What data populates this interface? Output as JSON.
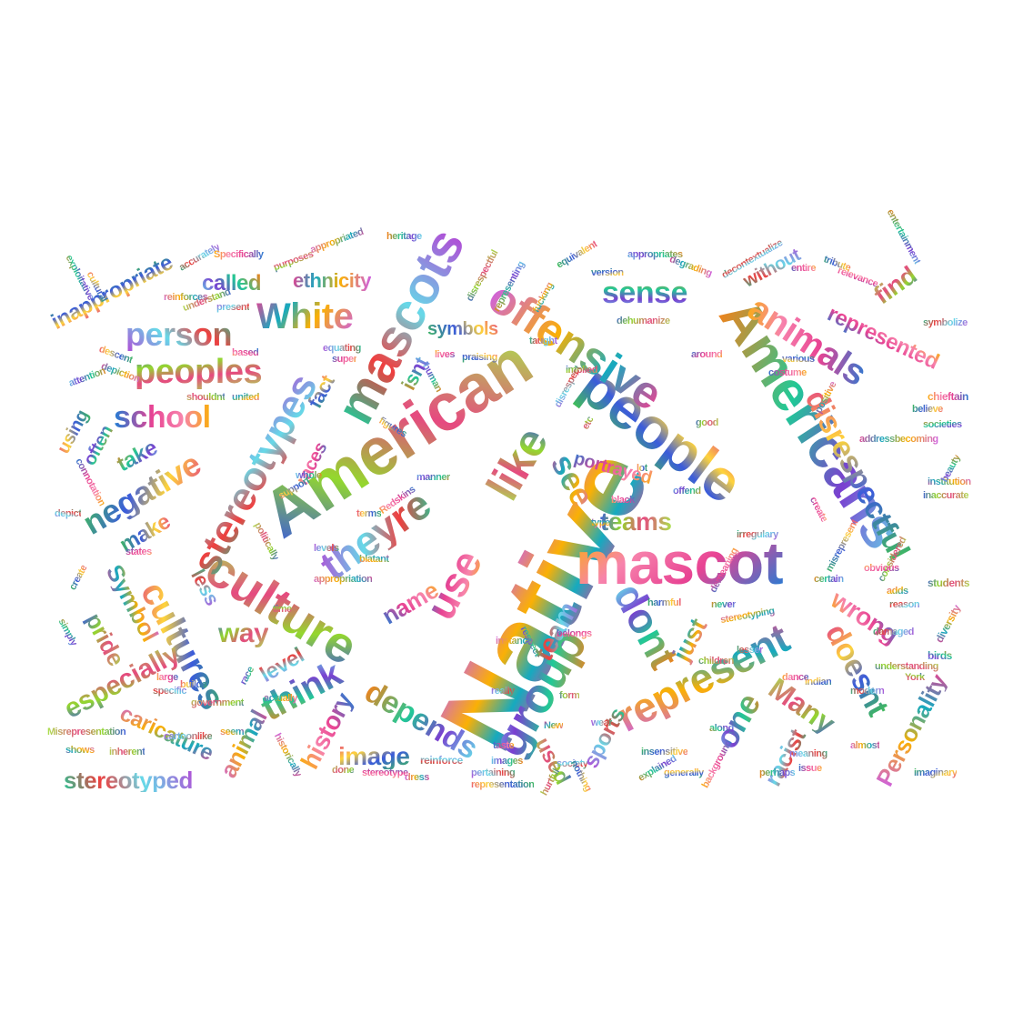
{
  "palette": [
    "#e84393",
    "#b24bd6",
    "#7a3fd0",
    "#3b5bdb",
    "#1c7ed6",
    "#15aabf",
    "#20c997",
    "#40c057",
    "#94d82d",
    "#fab005",
    "#fd7e14",
    "#f03e3e",
    "#e64980",
    "#cc5de8",
    "#f783ac",
    "#66d9e8",
    "#a9e34b",
    "#ffd43b"
  ],
  "words": [
    {
      "text": "Native"
    },
    {
      "text": "American"
    },
    {
      "text": "mascots"
    },
    {
      "text": "mascot"
    },
    {
      "text": "people"
    },
    {
      "text": "Americans"
    },
    {
      "text": "offensive"
    },
    {
      "text": "culture"
    },
    {
      "text": "stereotypes"
    },
    {
      "text": "animals"
    },
    {
      "text": "disrespectful"
    },
    {
      "text": "group"
    },
    {
      "text": "represent"
    },
    {
      "text": "like"
    },
    {
      "text": "theyre"
    },
    {
      "text": "use"
    },
    {
      "text": "cultures"
    },
    {
      "text": "dont"
    },
    {
      "text": "White"
    },
    {
      "text": "peoples"
    },
    {
      "text": "person"
    },
    {
      "text": "school"
    },
    {
      "text": "negative"
    },
    {
      "text": "sense"
    },
    {
      "text": "see"
    },
    {
      "text": "teams"
    },
    {
      "text": "team"
    },
    {
      "text": "represented"
    },
    {
      "text": "symbols"
    },
    {
      "text": "depends"
    },
    {
      "text": "caricature"
    },
    {
      "text": "especially"
    },
    {
      "text": "stereotyped"
    },
    {
      "text": "history"
    },
    {
      "text": "image"
    },
    {
      "text": "think"
    },
    {
      "text": "Personality"
    },
    {
      "text": "Many"
    },
    {
      "text": "racist"
    },
    {
      "text": "wrong"
    },
    {
      "text": "doesnt"
    },
    {
      "text": "one"
    },
    {
      "text": "just"
    },
    {
      "text": "used"
    },
    {
      "text": "sports"
    },
    {
      "text": "portrayed"
    },
    {
      "text": "inappropriate"
    },
    {
      "text": "called"
    },
    {
      "text": "ethnicity"
    },
    {
      "text": "way"
    },
    {
      "text": "level"
    },
    {
      "text": "name"
    },
    {
      "text": "make"
    },
    {
      "text": "take"
    },
    {
      "text": "Symbol"
    },
    {
      "text": "pride"
    },
    {
      "text": "less"
    },
    {
      "text": "races"
    },
    {
      "text": "fact"
    },
    {
      "text": "isnt"
    },
    {
      "text": "animal"
    },
    {
      "text": "find"
    },
    {
      "text": "without"
    },
    {
      "text": "chieftain"
    },
    {
      "text": "using"
    },
    {
      "text": "often"
    },
    {
      "text": "appropriation"
    },
    {
      "text": "Misrepresentation"
    },
    {
      "text": "cartoonlike"
    },
    {
      "text": "stereotype"
    },
    {
      "text": "representation"
    },
    {
      "text": "images"
    },
    {
      "text": "New"
    },
    {
      "text": "York"
    },
    {
      "text": "meaning"
    },
    {
      "text": "issue"
    },
    {
      "text": "imaginary"
    },
    {
      "text": "birds"
    },
    {
      "text": "diversity"
    },
    {
      "text": "students"
    },
    {
      "text": "reason"
    },
    {
      "text": "demeaning"
    },
    {
      "text": "harmful"
    },
    {
      "text": "never"
    },
    {
      "text": "stereotyping"
    },
    {
      "text": "children"
    },
    {
      "text": "lesser"
    },
    {
      "text": "background"
    },
    {
      "text": "generally"
    },
    {
      "text": "explained"
    },
    {
      "text": "dress"
    },
    {
      "text": "done"
    },
    {
      "text": "reinforce"
    },
    {
      "text": "Redskins"
    },
    {
      "text": "terms"
    },
    {
      "text": "manner"
    },
    {
      "text": "blatant"
    },
    {
      "text": "politically"
    },
    {
      "text": "levels"
    },
    {
      "text": "states"
    },
    {
      "text": "figures"
    },
    {
      "text": "human"
    },
    {
      "text": "depiction"
    },
    {
      "text": "implied"
    },
    {
      "text": "disrespect"
    },
    {
      "text": "costume"
    },
    {
      "text": "believe"
    },
    {
      "text": "societies"
    },
    {
      "text": "institution"
    },
    {
      "text": "inaccurate"
    },
    {
      "text": "symbolize"
    },
    {
      "text": "relevance"
    },
    {
      "text": "tribute"
    },
    {
      "text": "heritage"
    },
    {
      "text": "appropriated"
    },
    {
      "text": "purposes"
    },
    {
      "text": "accurately"
    },
    {
      "text": "Specifically"
    },
    {
      "text": "cultural"
    },
    {
      "text": "exploitative"
    },
    {
      "text": "reinforces"
    },
    {
      "text": "understand"
    },
    {
      "text": "present"
    },
    {
      "text": "based"
    },
    {
      "text": "descent"
    },
    {
      "text": "attention"
    },
    {
      "text": "united"
    },
    {
      "text": "shouldnt"
    },
    {
      "text": "equating"
    },
    {
      "text": "super"
    },
    {
      "text": "version"
    },
    {
      "text": "appropriates"
    },
    {
      "text": "degrading"
    },
    {
      "text": "dehumanize"
    },
    {
      "text": "decontextualize"
    },
    {
      "text": "entire"
    },
    {
      "text": "equivalent"
    },
    {
      "text": "entertainment"
    },
    {
      "text": "fucking"
    },
    {
      "text": "disrespectful"
    },
    {
      "text": "taught"
    },
    {
      "text": "lives"
    },
    {
      "text": "praising"
    },
    {
      "text": "representing"
    },
    {
      "text": "historically"
    },
    {
      "text": "government"
    },
    {
      "text": "specific"
    },
    {
      "text": "large"
    },
    {
      "text": "builds"
    },
    {
      "text": "race"
    },
    {
      "text": "seem"
    },
    {
      "text": "inherent"
    },
    {
      "text": "really"
    },
    {
      "text": "belongs"
    },
    {
      "text": "support"
    },
    {
      "text": "whole"
    },
    {
      "text": "actually"
    },
    {
      "text": "time"
    },
    {
      "text": "pertaining"
    },
    {
      "text": "taste"
    },
    {
      "text": "insensitive"
    },
    {
      "text": "respect"
    },
    {
      "text": "positive"
    },
    {
      "text": "good"
    },
    {
      "text": "irregulary"
    },
    {
      "text": "create"
    },
    {
      "text": "misrepresent"
    },
    {
      "text": "certain"
    },
    {
      "text": "adds"
    },
    {
      "text": "understanding"
    },
    {
      "text": "modern"
    },
    {
      "text": "dance"
    },
    {
      "text": "indian"
    },
    {
      "text": "along"
    },
    {
      "text": "almost"
    },
    {
      "text": "hurtful"
    },
    {
      "text": "society"
    },
    {
      "text": "black"
    },
    {
      "text": "lot"
    },
    {
      "text": "offend"
    },
    {
      "text": "type"
    },
    {
      "text": "etc"
    },
    {
      "text": "wear"
    },
    {
      "text": "around"
    },
    {
      "text": "various"
    },
    {
      "text": "beauty"
    },
    {
      "text": "addressbecoming"
    },
    {
      "text": "considered"
    },
    {
      "text": "depict"
    },
    {
      "text": "connotation"
    },
    {
      "text": "create"
    },
    {
      "text": "simply"
    },
    {
      "text": "shows"
    },
    {
      "text": "form"
    },
    {
      "text": "damaged"
    },
    {
      "text": "obvious"
    },
    {
      "text": "nothing"
    },
    {
      "text": "perhaps"
    },
    {
      "text": "instance"
    }
  ]
}
